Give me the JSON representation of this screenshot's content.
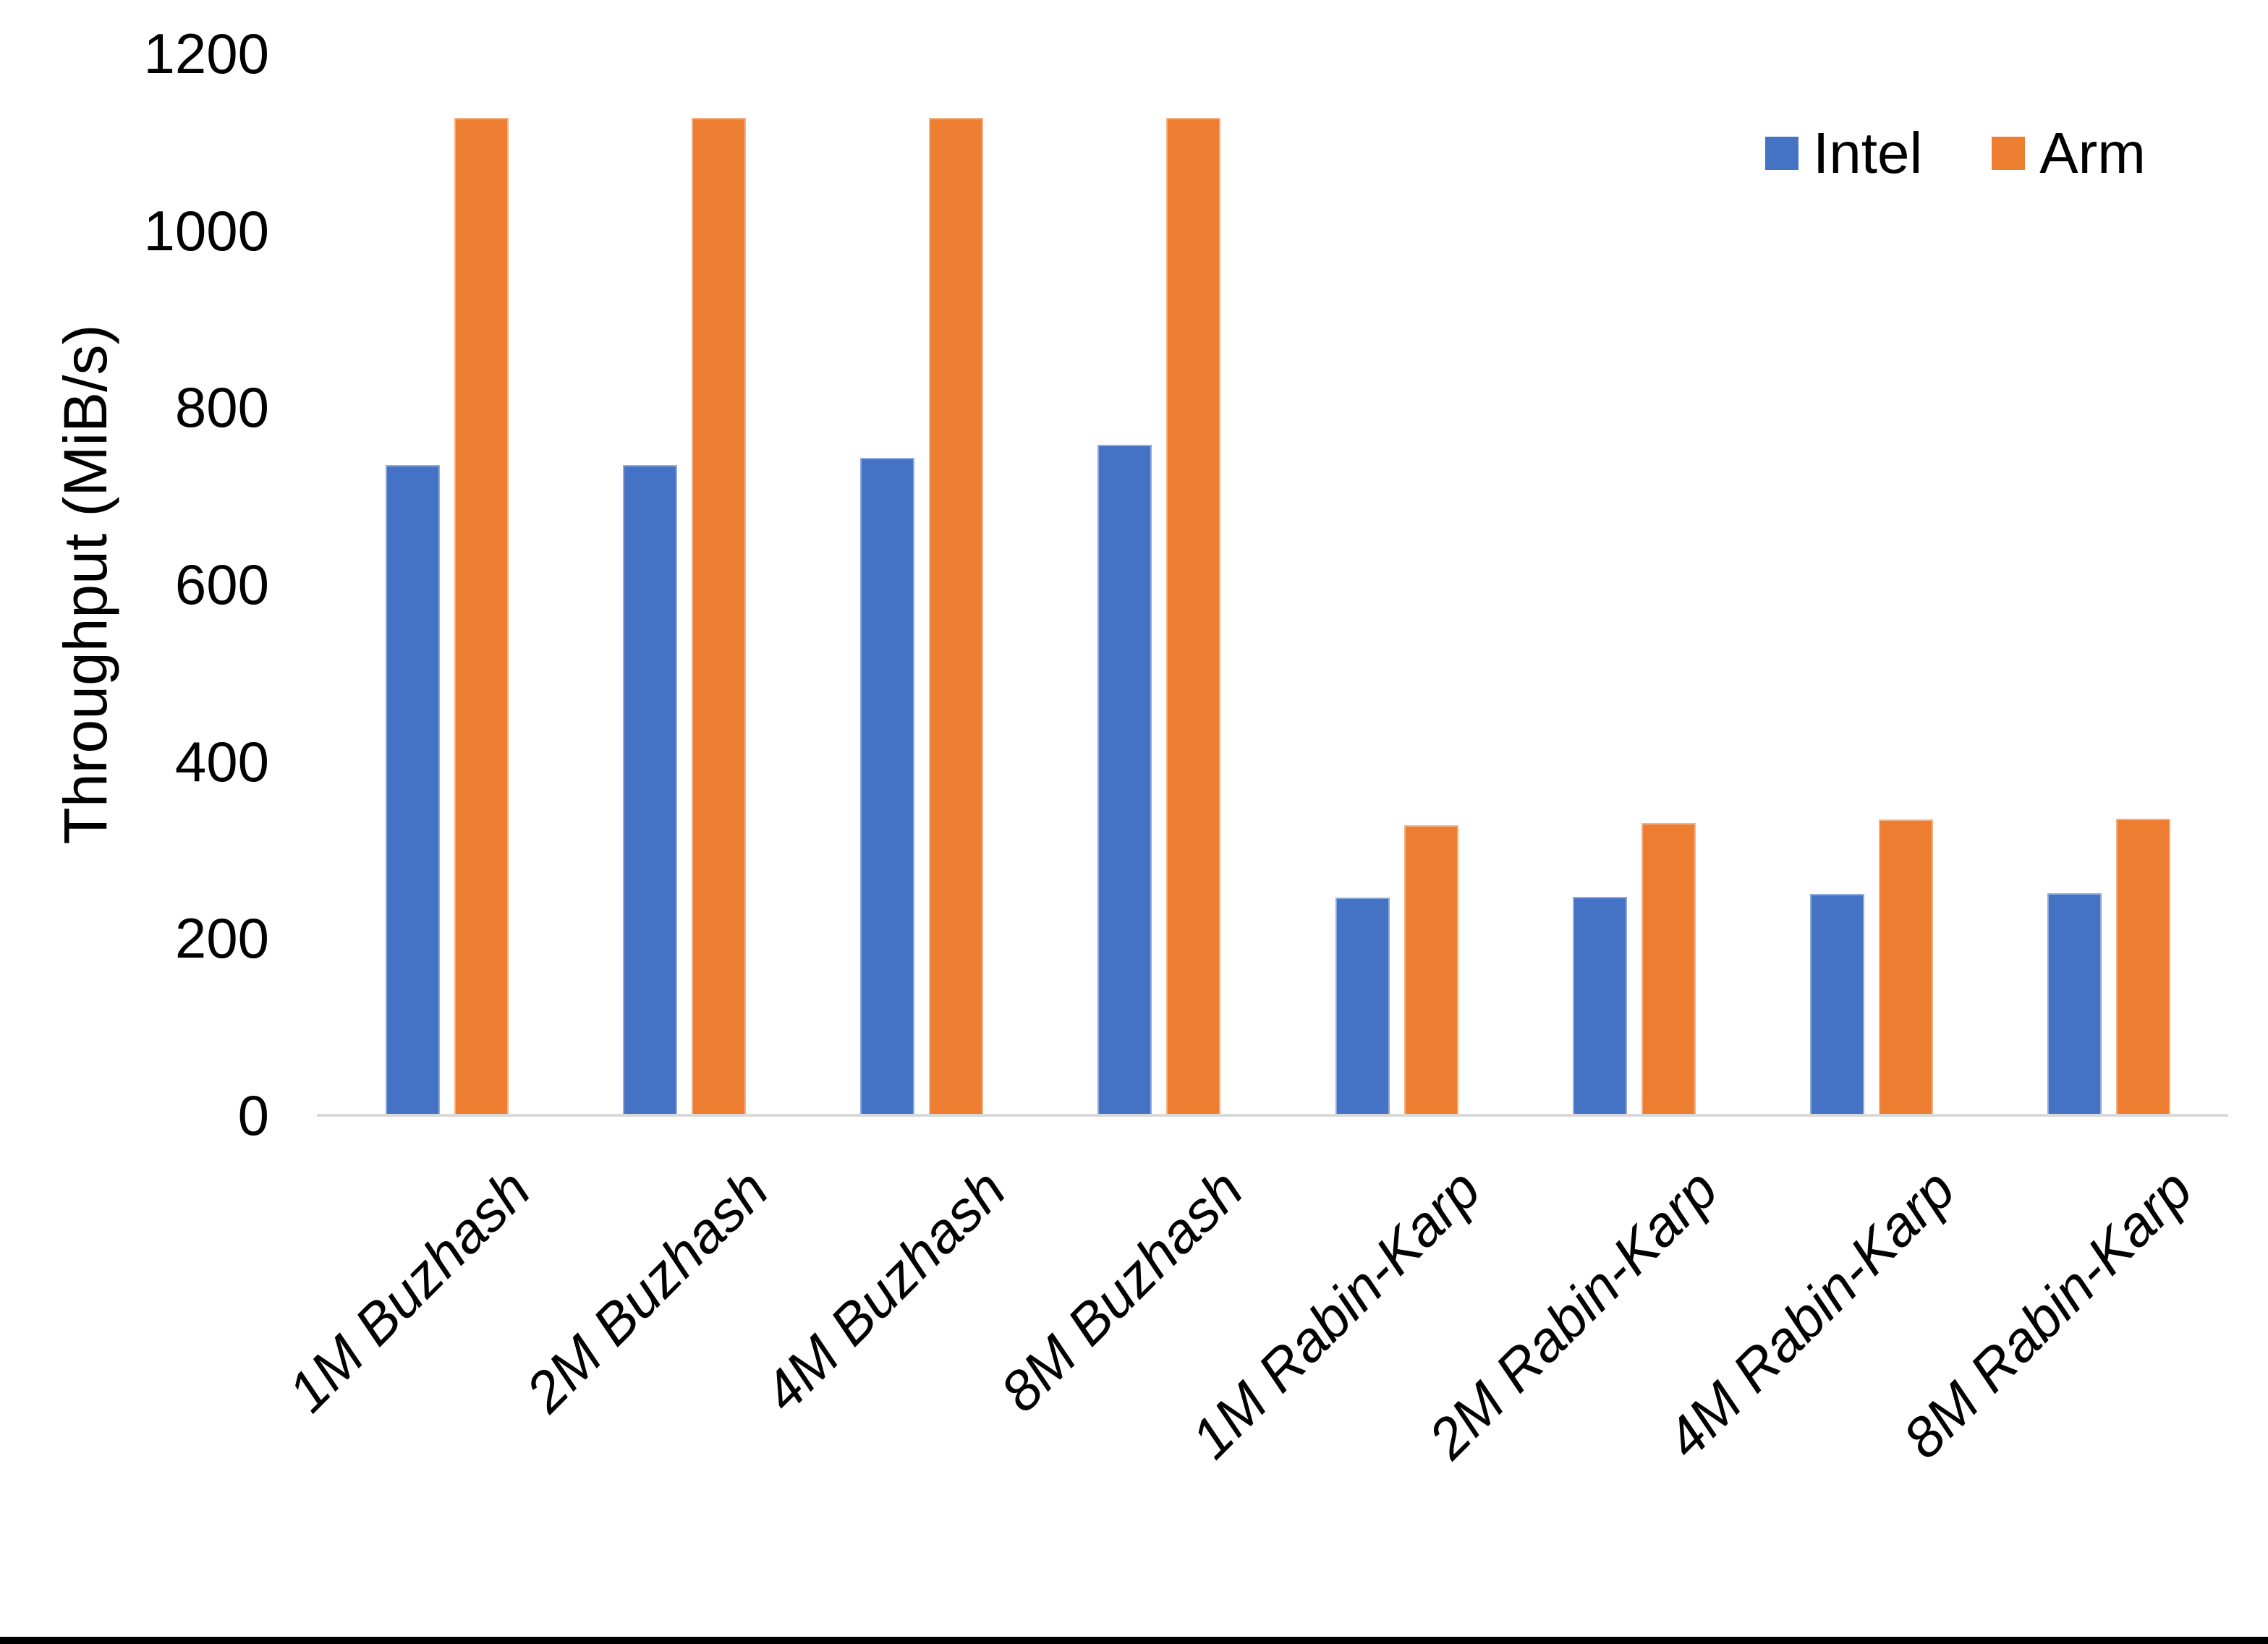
{
  "chart_data": {
    "type": "bar",
    "title": "",
    "ylabel": "Throughput (MiB/s)",
    "categories": [
      "1M Buzhash",
      "2M Buzhash",
      "4M Buzhash",
      "8M Buzhash",
      "1M Rabin-Karp",
      "2M Rabin-Karp",
      "4M Rabin-Karp",
      "8M Rabin-Karp"
    ],
    "series": [
      {
        "name": "Intel",
        "color": "#4472C4",
        "edge_color": "#8FAADC",
        "values": [
          735,
          735,
          743,
          758,
          246,
          247,
          250,
          251
        ]
      },
      {
        "name": "Arm",
        "color": "#ED7D31",
        "edge_color": "#F4B183",
        "values": [
          1127,
          1127,
          1127,
          1127,
          328,
          330,
          334,
          335
        ]
      }
    ],
    "ylim": [
      0,
      1200
    ],
    "ytick_step": 200,
    "yticks": [
      0,
      200,
      400,
      600,
      800,
      1000,
      1200
    ],
    "grid": false,
    "legend_position": "top-right",
    "axis_line_color": "#D9D9D9",
    "text_color": "#000000",
    "background_color": "#FFFFFF",
    "bottom_border_color": "#000000"
  }
}
